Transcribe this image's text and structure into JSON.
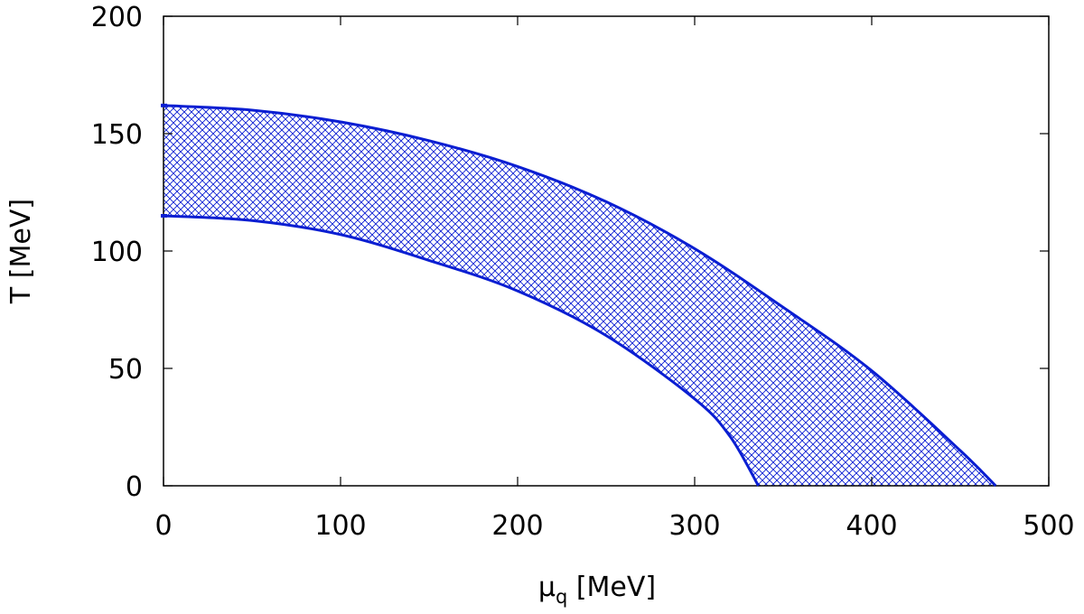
{
  "chart_data": {
    "type": "area",
    "xlabel": "μ",
    "xlabel_subscript": "q",
    "xlabel_unit": " [MeV]",
    "ylabel": "T [MeV]",
    "xlim": [
      0,
      500
    ],
    "ylim": [
      0,
      200
    ],
    "xticks": [
      0,
      100,
      200,
      300,
      400,
      500
    ],
    "yticks": [
      0,
      50,
      100,
      150,
      200
    ],
    "grid": false,
    "fill_pattern": "crosshatch",
    "color": "#0a1ed2",
    "series": [
      {
        "role": "upper",
        "x": [
          0,
          50,
          100,
          150,
          200,
          250,
          300,
          350,
          400,
          450,
          470
        ],
        "y": [
          162,
          160,
          155,
          147,
          136,
          121,
          101,
          76,
          49,
          15,
          0
        ]
      },
      {
        "role": "lower",
        "x": [
          0,
          50,
          100,
          150,
          200,
          250,
          300,
          320,
          336
        ],
        "y": [
          115,
          113,
          107,
          96,
          83,
          64,
          37,
          21,
          0
        ]
      }
    ]
  }
}
